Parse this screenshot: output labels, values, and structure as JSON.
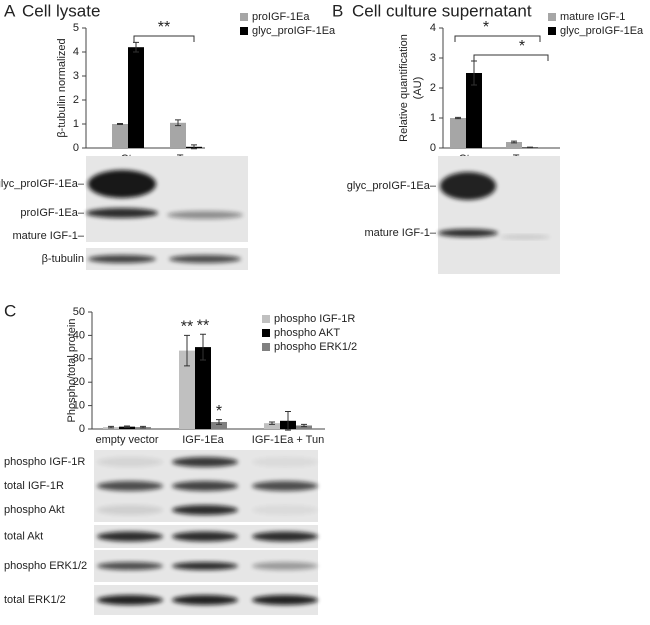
{
  "chart_data": [
    {
      "type": "bar",
      "panel": "A",
      "title": "Cell lysate",
      "ylabel": [
        "β-tubulin normalized"
      ],
      "categories": [
        "Ctr",
        "Tun"
      ],
      "ylim": [
        0,
        5
      ],
      "yticks": [
        0,
        1,
        2,
        3,
        4,
        5
      ],
      "series": [
        {
          "name": "proIGF-1Ea",
          "color": "#a6a6a6",
          "values": [
            1,
            1.05
          ],
          "errors": [
            0.02,
            0.12
          ]
        },
        {
          "name": "glyc_proIGF-1Ea",
          "color": "#000000",
          "values": [
            4.2,
            0.05
          ],
          "errors": [
            0.2,
            0.08
          ]
        }
      ],
      "annotations": [
        "**"
      ]
    },
    {
      "type": "bar",
      "panel": "B",
      "title": "Cell culture supernatant",
      "ylabel": [
        "Relative quantification",
        "(AU)"
      ],
      "categories": [
        "Ctr",
        "Tun"
      ],
      "ylim": [
        0,
        4
      ],
      "yticks": [
        0,
        1,
        2,
        3,
        4
      ],
      "series": [
        {
          "name": "mature IGF-1",
          "color": "#a6a6a6",
          "values": [
            1,
            0.2
          ],
          "errors": [
            0.02,
            0.03
          ]
        },
        {
          "name": "glyc_proIGF-1Ea",
          "color": "#000000",
          "values": [
            2.5,
            0.02
          ],
          "errors": [
            0.4,
            0.01
          ]
        }
      ],
      "annotations": [
        "*",
        "*"
      ]
    },
    {
      "type": "bar",
      "panel": "C",
      "ylabel": [
        "Phospho/total protein"
      ],
      "categories": [
        "empty vector",
        "IGF-1Ea",
        "IGF-1Ea + Tun"
      ],
      "ylim": [
        0,
        50
      ],
      "yticks": [
        0,
        10,
        20,
        30,
        40,
        50
      ],
      "series": [
        {
          "name": "phospho IGF-1R",
          "color": "#c0c0c0",
          "values": [
            0.8,
            33.5,
            2.5
          ],
          "errors": [
            0.3,
            6.5,
            0.5
          ]
        },
        {
          "name": "phospho AKT",
          "color": "#000000",
          "values": [
            1,
            35,
            3.5
          ],
          "errors": [
            0.3,
            5.5,
            4
          ]
        },
        {
          "name": "phospho ERK1/2",
          "color": "#808080",
          "values": [
            0.8,
            3,
            1.5
          ],
          "errors": [
            0.3,
            1,
            0.5
          ]
        }
      ],
      "annotations": [
        "**",
        "**",
        "*"
      ]
    }
  ],
  "blots": {
    "A": [
      "glyc_proIGF-1Ea–",
      "proIGF-1Ea–",
      "mature IGF-1–",
      "β-tubulin"
    ],
    "B": [
      "glyc_proIGF-1Ea–",
      "mature IGF-1–"
    ],
    "C": [
      "phospho IGF-1R",
      "total IGF-1R",
      "phospho Akt",
      "total Akt",
      "phospho ERK1/2",
      "total ERK1/2"
    ]
  }
}
